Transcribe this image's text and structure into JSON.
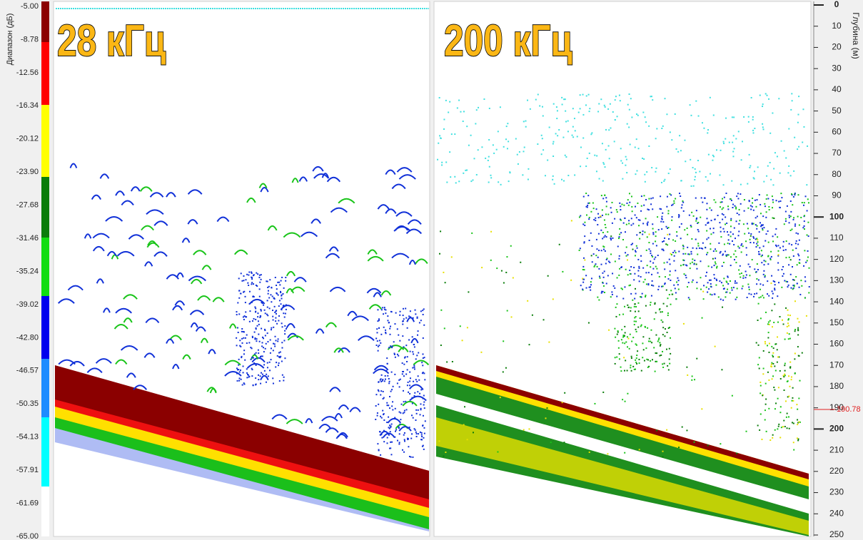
{
  "color_scale": {
    "label": "Диапазон (дБ)",
    "ticks": [
      "-5.00",
      "-8.78",
      "-12.56",
      "-16.34",
      "-20.12",
      "-23.90",
      "-27.68",
      "-31.46",
      "-35.24",
      "-39.02",
      "-42.80",
      "-46.57",
      "-50.35",
      "-54.13",
      "-57.91",
      "-61.69",
      "-65.00"
    ]
  },
  "panels": [
    {
      "title": "28 кГц"
    },
    {
      "title": "200 кГц"
    }
  ],
  "depth_axis": {
    "label": "Глубина (м)",
    "ticks": [
      0,
      10,
      20,
      30,
      40,
      50,
      60,
      70,
      80,
      90,
      100,
      110,
      120,
      130,
      140,
      150,
      160,
      170,
      180,
      190,
      200,
      210,
      220,
      230,
      240,
      250
    ],
    "marker": 190.78
  }
}
